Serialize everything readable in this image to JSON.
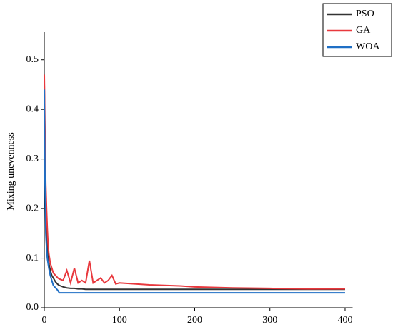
{
  "chart_data": {
    "type": "line",
    "y_label": "Mixing unevenness",
    "x": [
      0,
      1,
      2,
      3,
      4,
      5,
      6,
      8,
      10,
      12,
      15,
      18,
      20,
      25,
      30,
      35,
      40,
      45,
      50,
      55,
      60,
      65,
      70,
      75,
      80,
      85,
      90,
      95,
      100,
      120,
      140,
      160,
      180,
      200,
      250,
      300,
      350,
      400
    ],
    "series": [
      {
        "name": "PSO",
        "color": "#333333",
        "values": [
          0.45,
          0.3,
          0.2,
          0.15,
          0.12,
          0.1,
          0.09,
          0.075,
          0.065,
          0.06,
          0.052,
          0.047,
          0.045,
          0.042,
          0.04,
          0.039,
          0.039,
          0.038,
          0.038,
          0.037,
          0.037,
          0.037,
          0.037,
          0.037,
          0.037,
          0.037,
          0.037,
          0.037,
          0.037,
          0.037,
          0.037,
          0.037,
          0.037,
          0.037,
          0.037,
          0.037,
          0.037,
          0.037
        ]
      },
      {
        "name": "GA",
        "color": "#e8383d",
        "values": [
          0.47,
          0.35,
          0.25,
          0.2,
          0.16,
          0.13,
          0.11,
          0.09,
          0.08,
          0.07,
          0.065,
          0.06,
          0.058,
          0.055,
          0.075,
          0.05,
          0.08,
          0.05,
          0.055,
          0.05,
          0.095,
          0.05,
          0.055,
          0.06,
          0.05,
          0.055,
          0.065,
          0.048,
          0.05,
          0.048,
          0.046,
          0.045,
          0.044,
          0.042,
          0.04,
          0.039,
          0.038,
          0.038
        ]
      },
      {
        "name": "WOA",
        "color": "#1f6fc5",
        "values": [
          0.44,
          0.25,
          0.15,
          0.12,
          0.1,
          0.09,
          0.08,
          0.065,
          0.055,
          0.045,
          0.04,
          0.035,
          0.03,
          0.03,
          0.03,
          0.03,
          0.03,
          0.03,
          0.03,
          0.03,
          0.03,
          0.03,
          0.03,
          0.03,
          0.03,
          0.03,
          0.03,
          0.03,
          0.03,
          0.03,
          0.03,
          0.03,
          0.03,
          0.03,
          0.03,
          0.03,
          0.03,
          0.03
        ]
      }
    ],
    "xlim": [
      0,
      410
    ],
    "xticks": [
      0,
      100,
      200,
      300,
      400
    ],
    "ylim": [
      0,
      0.55
    ],
    "yticks": [
      {
        "value": 0,
        "label": "0.0"
      },
      0.1,
      0.2,
      0.3,
      0.4,
      0.5
    ],
    "legend": "top-right"
  }
}
